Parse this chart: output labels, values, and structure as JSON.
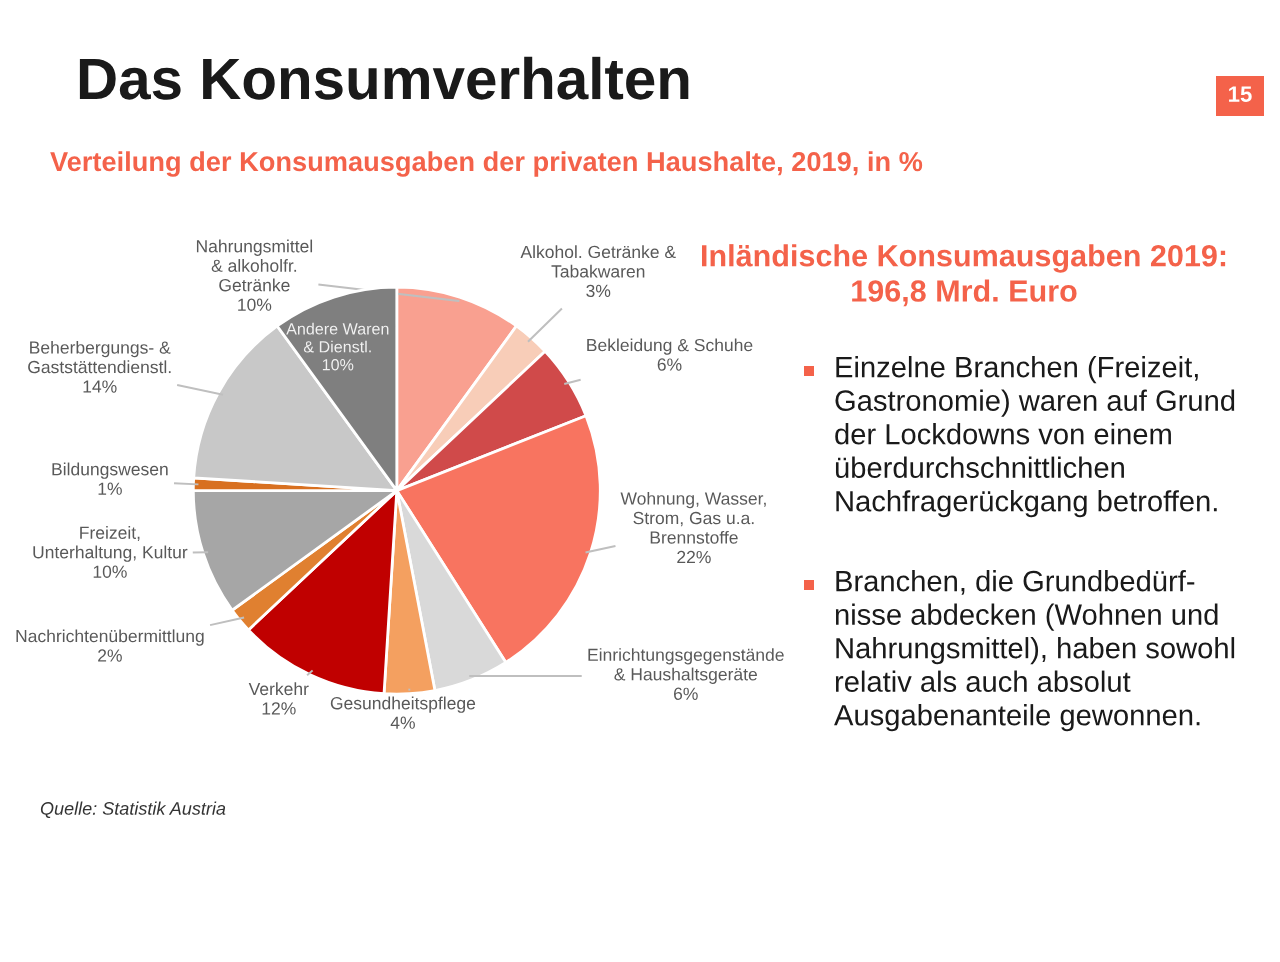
{
  "chart_data": {
    "type": "pie",
    "title": "Das Konsumverhalten",
    "subtitle": "Verteilung der Konsumausgaben der privaten Haushalte, 2019, in %",
    "categories": [
      "Nahrungsmittel\n& alkoholfr.\nGetränke",
      "Alkohol. Getränke &\nTabakwaren",
      "Bekleidung & Schuhe",
      "Wohnung, Wasser,\nStrom, Gas u.a.\nBrennstoffe",
      "Einrichtungsgegenstände\n& Haushaltsgeräte",
      "Gesundheitspflege",
      "Verkehr",
      "Nachrichtenübermittlung",
      "Freizeit,\nUnterhaltung, Kultur",
      "Bildungswesen",
      "Beherbergungs- &\nGaststättendienstl.",
      "Andere Waren\n& Dienstl."
    ],
    "values": [
      10,
      3,
      6,
      22,
      6,
      4,
      12,
      2,
      10,
      1,
      14,
      10
    ],
    "colors": [
      "#f9a090",
      "#f8cdb8",
      "#d04a4a",
      "#f87460",
      "#d9d9d9",
      "#f4a060",
      "#c00000",
      "#e08030",
      "#a6a6a6",
      "#d87020",
      "#c8c8c8",
      "#7f7f7f"
    ],
    "value_labels": [
      "10%",
      "3%",
      "6%",
      "22%",
      "6%",
      "4%",
      "12%",
      "2%",
      "10%",
      "1%",
      "14%",
      "10%"
    ],
    "annotations": [
      "Inländische Konsumausgaben 2019:\n196,8 Mrd. Euro",
      "Einzelne Branchen (Freizeit,\nGastronomie) waren auf Grund\nder Lockdowns von einem\nüberdurchschnittlichen\nNachfragerückgang betroffen.",
      "Branchen, die Grundbedürf-\nnisse abdecken (Wohnen und\nNahrungsmittel), haben sowohl\nrelativ als auch absolut\nAusgabenanteile gewonnen.",
      "Quelle: Statistik Austria",
      "15"
    ]
  }
}
